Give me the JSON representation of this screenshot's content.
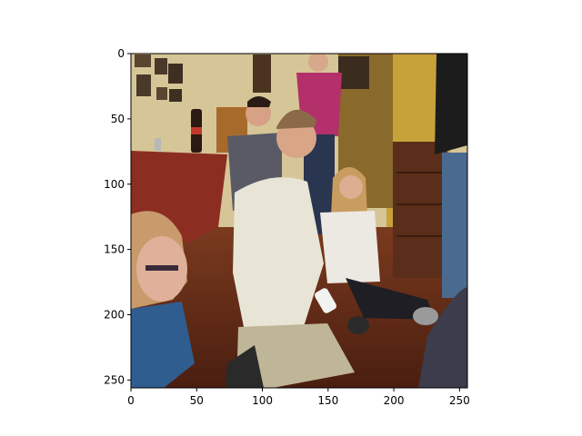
{
  "figure": {
    "type": "image-axes",
    "image_description": "Group of young people kneeling and sitting on a wooden floor in a living room, playing a motion-controller video game",
    "colors": {
      "wall": "#d9c89a",
      "wall_yellow": "#c9a437",
      "floor": "#6a2e1a",
      "tablecloth": "#8f2d22",
      "shirt_white": "#e9e6d8",
      "shirt_magenta": "#b3306a",
      "shirt_blue": "#2f5d8f",
      "skin": "#d9a78a",
      "hair_blonde": "#c79d5e",
      "dark": "#1a1a1a"
    }
  },
  "chart_data": {
    "type": "image",
    "xlim": [
      0,
      256
    ],
    "ylim": [
      256,
      0
    ],
    "x_ticks": [
      0,
      50,
      100,
      150,
      200,
      250
    ],
    "y_ticks": [
      0,
      50,
      100,
      150,
      200,
      250
    ],
    "x_tick_labels": [
      "0",
      "50",
      "100",
      "150",
      "200",
      "250"
    ],
    "y_tick_labels": [
      "0",
      "50",
      "100",
      "150",
      "200",
      "250"
    ]
  }
}
